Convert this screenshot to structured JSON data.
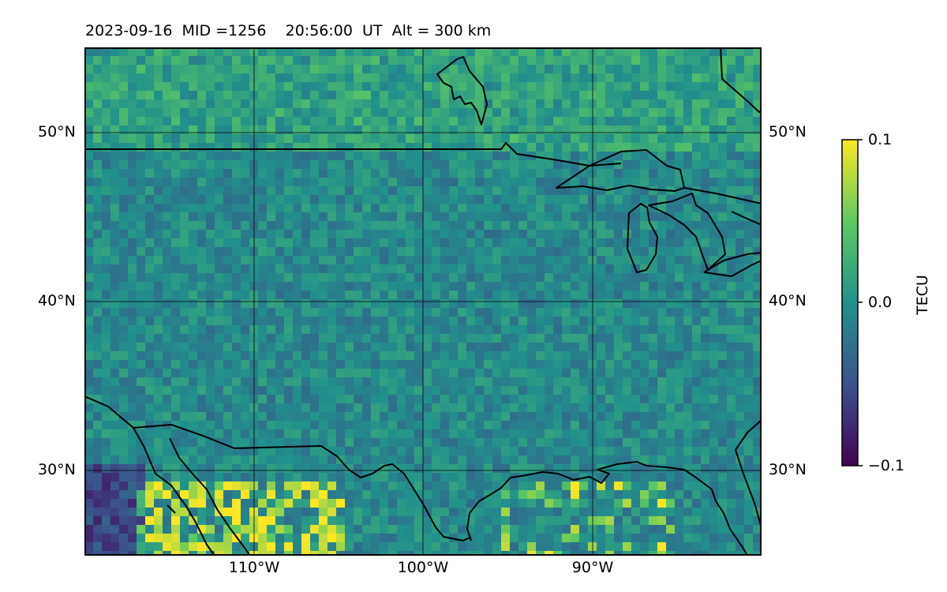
{
  "title": {
    "date": "2023-09-16",
    "mid": "MID =1256",
    "time": "20:56:00  UT",
    "alt": "Alt = 300 km"
  },
  "map": {
    "lon_range": [
      -120,
      -80
    ],
    "lat_range": [
      25,
      55
    ],
    "lat_ticks": [
      {
        "value": 50,
        "label": "50°N"
      },
      {
        "value": 40,
        "label": "40°N"
      },
      {
        "value": 30,
        "label": "30°N"
      }
    ],
    "lon_ticks": [
      {
        "value": -110,
        "label": "110°W"
      },
      {
        "value": -100,
        "label": "100°W"
      },
      {
        "value": -90,
        "label": "90°W"
      }
    ],
    "grid": true,
    "colormap": "viridis",
    "background_field": "detrended TEC perturbations",
    "features": [
      "US-Canada border",
      "Great Lakes",
      "US-Mexico border",
      "Gulf of Mexico coastline",
      "Baja California",
      "Hudson Bay"
    ]
  },
  "colorbar": {
    "label": "TECU",
    "min": -0.1,
    "max": 0.1,
    "ticks": [
      {
        "value": 0.1,
        "label": "0.1"
      },
      {
        "value": 0.0,
        "label": "0.0"
      },
      {
        "value": -0.1,
        "label": "−0.1"
      }
    ],
    "colors": [
      "#440154",
      "#3b528b",
      "#21918c",
      "#5ec962",
      "#fde725"
    ]
  }
}
